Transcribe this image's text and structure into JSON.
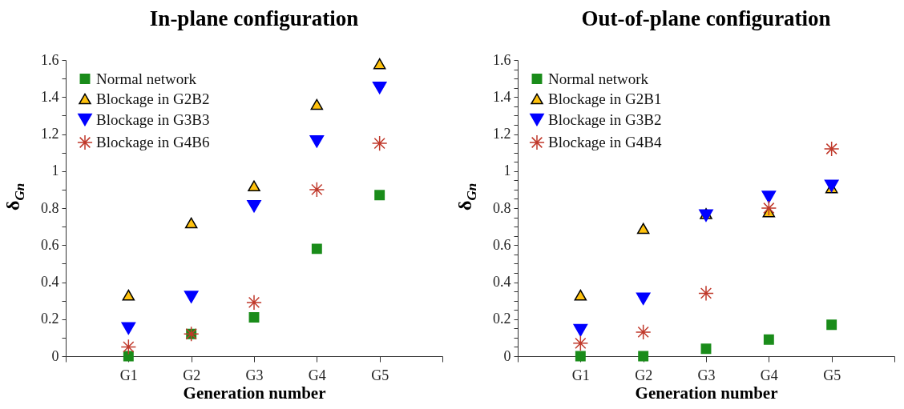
{
  "chart_data": [
    {
      "type": "scatter",
      "title": "In-plane configuration",
      "xlabel": "Generation number",
      "ylabel": "δ$_{Gn}$",
      "categories": [
        null,
        "G1",
        "G2",
        "G3",
        "G4",
        "G5",
        null
      ],
      "series": [
        {
          "name": "Normal network",
          "color": "#1a8c1a",
          "marker": "square",
          "values": [
            null,
            0,
            0.12,
            0.21,
            0.58,
            0.87,
            null
          ]
        },
        {
          "name": "Blockage in G2B2",
          "color": "#ffc20e",
          "marker": "triangle",
          "values": [
            null,
            0.33,
            0.72,
            0.92,
            1.36,
            1.58,
            null
          ]
        },
        {
          "name": "Blockage in G3B3",
          "color": "#0000ff",
          "marker": "triangle-down",
          "values": [
            null,
            0.15,
            0.32,
            0.81,
            1.16,
            1.45,
            null
          ]
        },
        {
          "name": "Blockage in G4B6",
          "color": "#c0392b",
          "marker": "cross",
          "values": [
            null,
            0.05,
            0.12,
            0.29,
            0.9,
            1.15,
            null
          ]
        }
      ],
      "ylim": [
        0,
        1.6
      ],
      "yticks": [
        0,
        {
          "value": 0.1,
          "label": null
        },
        0.2,
        {
          "value": 0.3,
          "label": null
        },
        0.4,
        {
          "value": 0.5,
          "label": null
        },
        0.6,
        {
          "value": 0.7,
          "label": null
        },
        0.8,
        {
          "value": 0.9,
          "label": null
        },
        1,
        {
          "value": 1.1,
          "label": null
        },
        1.2,
        {
          "value": 1.3,
          "label": null
        },
        1.4,
        {
          "value": 1.5,
          "label": null
        },
        1.6
      ],
      "grid": false,
      "legend": "top left"
    },
    {
      "type": "scatter",
      "title": "Out-of-plane configuration",
      "xlabel": "Generation number",
      "ylabel": "δ$_{Gn}$",
      "categories": [
        null,
        "G1",
        "G2",
        "G3",
        "G4",
        "G5",
        null
      ],
      "series": [
        {
          "name": "Normal network",
          "color": "#1a8c1a",
          "marker": "square",
          "values": [
            null,
            0,
            0,
            0.04,
            0.09,
            0.17,
            null
          ]
        },
        {
          "name": "Blockage in G2B1",
          "color": "#ffc20e",
          "marker": "triangle",
          "values": [
            null,
            0.33,
            0.69,
            0.77,
            0.78,
            0.91,
            null
          ]
        },
        {
          "name": "Blockage in G3B2",
          "color": "#0000ff",
          "marker": "triangle-down",
          "values": [
            null,
            0.14,
            0.31,
            0.76,
            0.86,
            0.92,
            null
          ]
        },
        {
          "name": "Blockage in G4B4",
          "color": "#c0392b",
          "marker": "cross",
          "values": [
            null,
            0.07,
            0.13,
            0.34,
            0.8,
            1.12,
            null
          ]
        }
      ],
      "ylim": [
        0,
        1.6
      ],
      "yticks": [
        0,
        {
          "value": 0.05,
          "label": null
        },
        {
          "value": 0.1,
          "label": null
        },
        {
          "value": 0.15,
          "label": null
        },
        0.2,
        {
          "value": 0.25,
          "label": null
        },
        {
          "value": 0.3,
          "label": null
        },
        {
          "value": 0.35,
          "label": null
        },
        0.4,
        {
          "value": 0.45,
          "label": null
        },
        {
          "value": 0.5,
          "label": null
        },
        {
          "value": 0.55,
          "label": null
        },
        0.6,
        {
          "value": 0.65,
          "label": null
        },
        {
          "value": 0.7,
          "label": null
        },
        {
          "value": 0.75,
          "label": null
        },
        0.8,
        {
          "value": 0.85,
          "label": null
        },
        {
          "value": 0.9,
          "label": null
        },
        {
          "value": 0.95,
          "label": null
        },
        1,
        {
          "value": 1.05,
          "label": null
        },
        {
          "value": 1.1,
          "label": null
        },
        {
          "value": 1.15,
          "label": null
        },
        1.2,
        {
          "value": 1.25,
          "label": null
        },
        {
          "value": 1.3,
          "label": null
        },
        {
          "value": 1.35,
          "label": null
        },
        1.4,
        {
          "value": 1.45,
          "label": null
        },
        {
          "value": 1.5,
          "label": null
        },
        {
          "value": 1.55,
          "label": null
        },
        1.6
      ],
      "grid": false,
      "legend": "top left"
    }
  ]
}
